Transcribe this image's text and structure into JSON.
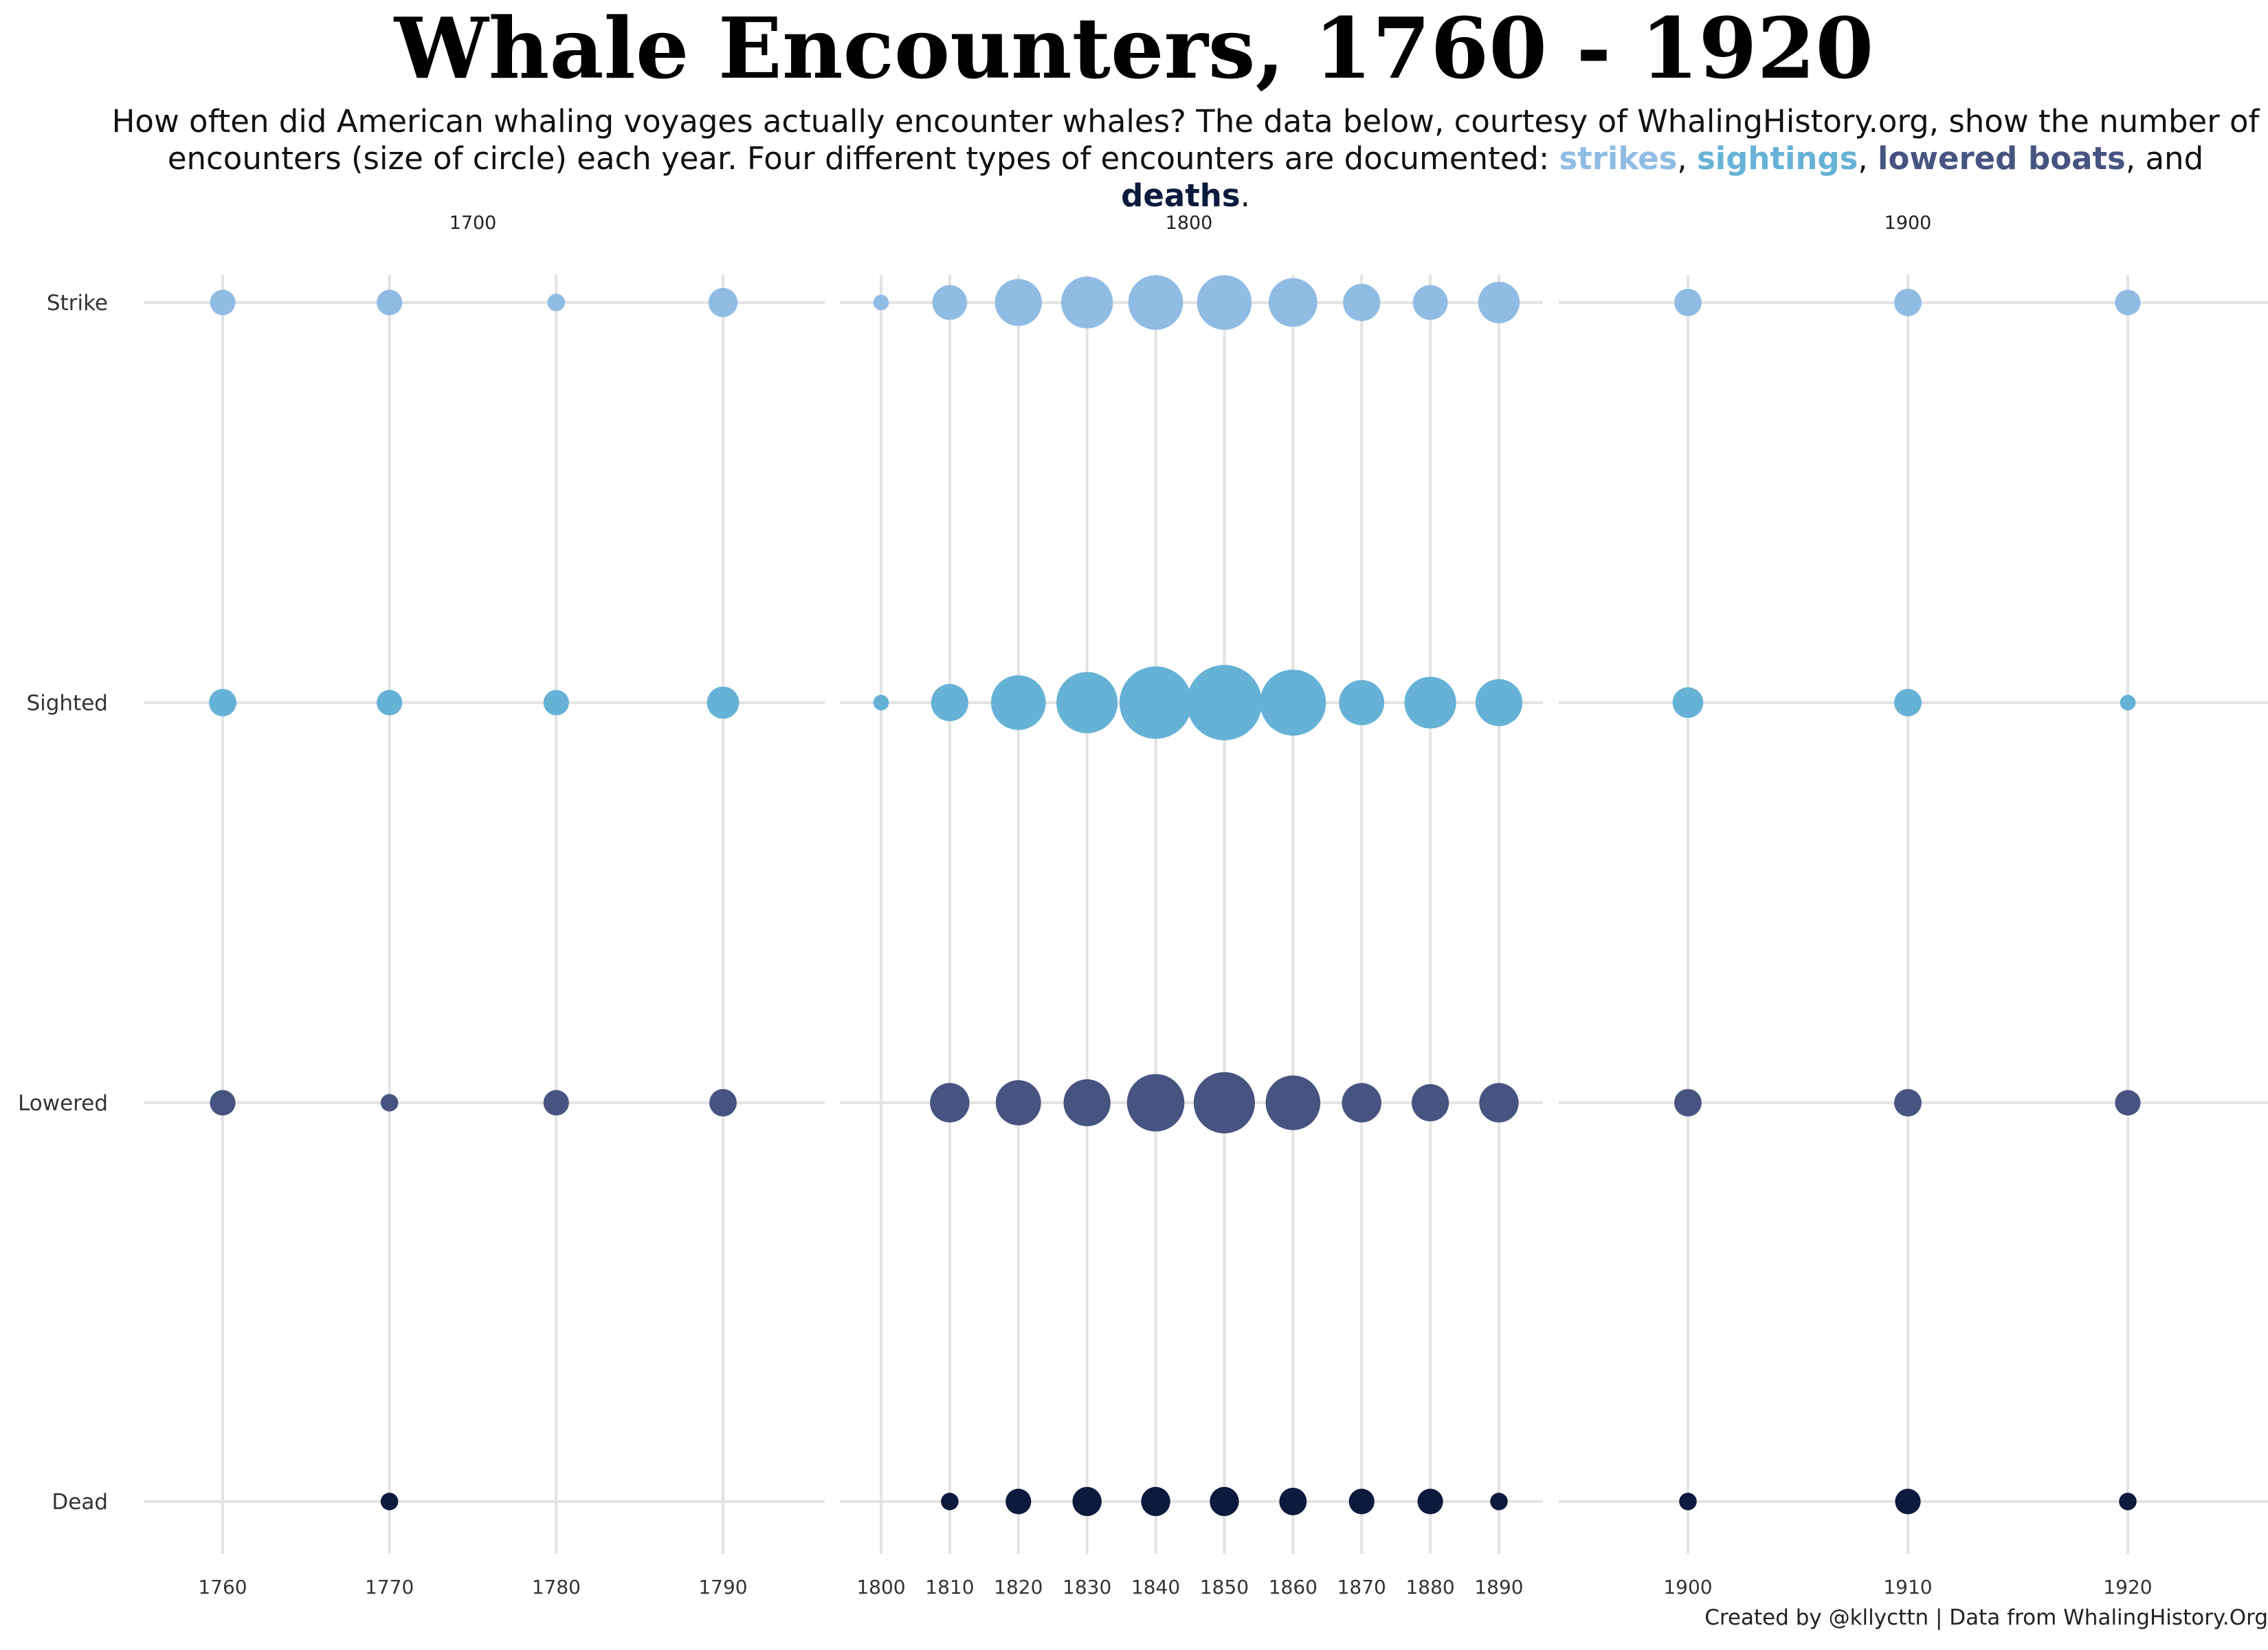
{
  "title": "Whale Encounters, 1760 - 1920",
  "subtitle": {
    "line1": "How often did American whaling voyages actually encounter whales? The data below, courtesy of WhalingHistory.org, show the number of",
    "line2_prefix": "encounters (size of circle) each year. Four different types of encounters are documented: ",
    "strikes": "strikes",
    "sep1": ", ",
    "sightings": "sightings",
    "sep2": ", ",
    "lowered": "lowered boats",
    "sep3": ", and ",
    "deaths": "deaths",
    "end": "."
  },
  "caption": "Created by @kllycttn | Data from WhalingHistory.Org",
  "colors": {
    "strike": "#90bce4",
    "sighted": "#66b2d6",
    "lowered": "#475481",
    "dead": "#0b1a3d",
    "grid": "#e3e3e3"
  },
  "chart_data": {
    "type": "scatter",
    "encoding": "bubble size = number of encounters (relative, no size legend shown)",
    "y_categories": [
      "Strike",
      "Sighted",
      "Lowered",
      "Dead"
    ],
    "panels": [
      {
        "label": "1700",
        "x_ticks": [
          "1760",
          "1770",
          "1780",
          "1790"
        ],
        "years": [
          1760,
          1770,
          1780,
          1790
        ],
        "series": [
          {
            "category": "Strike",
            "values": [
              2,
              2,
              1.5,
              3
            ]
          },
          {
            "category": "Sighted",
            "values": [
              2.5,
              2,
              2,
              4
            ]
          },
          {
            "category": "Lowered",
            "values": [
              2,
              1.5,
              2,
              2.5
            ]
          },
          {
            "category": "Dead",
            "values": [
              null,
              1.5,
              null,
              null
            ]
          }
        ]
      },
      {
        "label": "1800",
        "x_ticks": [
          "1800",
          "1810",
          "1820",
          "1830",
          "1840",
          "1850",
          "1860",
          "1870",
          "1880",
          "1890"
        ],
        "years": [
          1800,
          1810,
          1820,
          1830,
          1840,
          1850,
          1860,
          1870,
          1880,
          1890
        ],
        "series": [
          {
            "category": "Strike",
            "values": [
              1,
              5,
              11,
              14,
              16,
              16,
              12,
              6,
              5,
              8
            ]
          },
          {
            "category": "Sighted",
            "values": [
              1,
              6,
              16,
              21,
              31,
              34,
              25,
              10,
              14,
              11
            ]
          },
          {
            "category": "Lowered",
            "values": [
              null,
              7,
              10,
              11,
              18,
              21,
              16,
              7,
              6,
              7
            ]
          },
          {
            "category": "Dead",
            "values": [
              null,
              1.5,
              2,
              3,
              3,
              3,
              2.5,
              2,
              2,
              1.5
            ]
          }
        ]
      },
      {
        "label": "1900",
        "x_ticks": [
          "1900",
          "1910",
          "1920"
        ],
        "years": [
          1900,
          1910,
          1920
        ],
        "series": [
          {
            "category": "Strike",
            "values": [
              2.5,
              2.5,
              2
            ]
          },
          {
            "category": "Sighted",
            "values": [
              3.5,
              2.5,
              1
            ]
          },
          {
            "category": "Lowered",
            "values": [
              2.5,
              2.5,
              2
            ]
          },
          {
            "category": "Dead",
            "values": [
              1.5,
              2,
              1.5
            ]
          }
        ]
      }
    ],
    "xlabel": "",
    "ylabel": "",
    "grid": true,
    "legend": "none"
  }
}
